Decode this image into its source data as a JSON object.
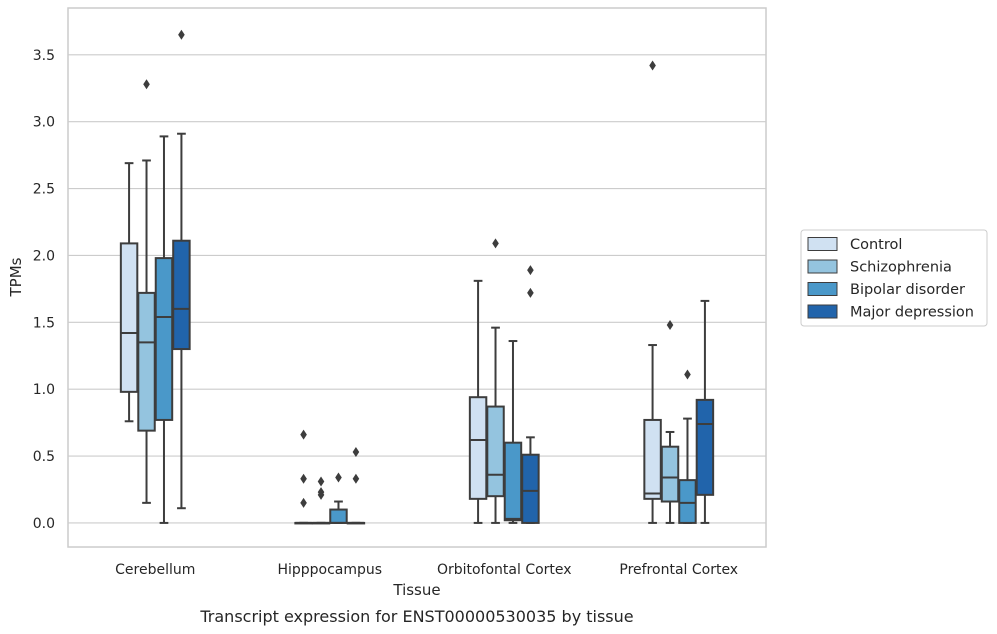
{
  "chart_data": {
    "type": "boxplot",
    "xlabel": "Tissue",
    "ylabel": "TPMs",
    "caption": "Transcript expression for ENST00000530035 by tissue",
    "ylim": [
      -0.18,
      3.85
    ],
    "yticks": [
      "0.0",
      "0.5",
      "1.0",
      "1.5",
      "2.0",
      "2.5",
      "3.0",
      "3.5"
    ],
    "grid": true,
    "legend_position": "right",
    "categories": [
      "Cerebellum",
      "Hipppocampus",
      "Orbitofontal Cortex",
      "Prefrontal Cortex"
    ],
    "series": [
      {
        "name": "Control",
        "color": "#d0e1f2",
        "boxes": [
          {
            "whislo": 0.76,
            "q1": 0.98,
            "med": 1.42,
            "q3": 2.09,
            "whishi": 2.69,
            "fliers": []
          },
          {
            "whislo": 0.0,
            "q1": 0.0,
            "med": 0.0,
            "q3": 0.0,
            "whishi": 0.0,
            "fliers": [
              0.66,
              0.33,
              0.15
            ]
          },
          {
            "whislo": 0.0,
            "q1": 0.18,
            "med": 0.62,
            "q3": 0.94,
            "whishi": 1.81,
            "fliers": []
          },
          {
            "whislo": 0.0,
            "q1": 0.18,
            "med": 0.22,
            "q3": 0.77,
            "whishi": 1.33,
            "fliers": [
              3.42
            ]
          }
        ]
      },
      {
        "name": "Schizophrenia",
        "color": "#94c4df",
        "boxes": [
          {
            "whislo": 0.15,
            "q1": 0.69,
            "med": 1.35,
            "q3": 1.72,
            "whishi": 2.71,
            "fliers": [
              3.28
            ]
          },
          {
            "whislo": 0.0,
            "q1": 0.0,
            "med": 0.0,
            "q3": 0.0,
            "whishi": 0.0,
            "fliers": [
              0.31,
              0.23,
              0.21
            ]
          },
          {
            "whislo": 0.0,
            "q1": 0.2,
            "med": 0.36,
            "q3": 0.87,
            "whishi": 1.46,
            "fliers": [
              2.09
            ]
          },
          {
            "whislo": 0.0,
            "q1": 0.16,
            "med": 0.34,
            "q3": 0.57,
            "whishi": 0.68,
            "fliers": [
              1.48
            ]
          }
        ]
      },
      {
        "name": "Bipolar disorder",
        "color": "#4a98c9",
        "boxes": [
          {
            "whislo": 0.0,
            "q1": 0.77,
            "med": 1.54,
            "q3": 1.98,
            "whishi": 2.89,
            "fliers": []
          },
          {
            "whislo": 0.0,
            "q1": 0.0,
            "med": 0.0,
            "q3": 0.1,
            "whishi": 0.16,
            "fliers": [
              0.34
            ]
          },
          {
            "whislo": 0.0,
            "q1": 0.02,
            "med": 0.03,
            "q3": 0.6,
            "whishi": 1.36,
            "fliers": []
          },
          {
            "whislo": 0.0,
            "q1": 0.0,
            "med": 0.15,
            "q3": 0.32,
            "whishi": 0.78,
            "fliers": [
              1.11
            ]
          }
        ]
      },
      {
        "name": "Major depression",
        "color": "#2164ab",
        "boxes": [
          {
            "whislo": 0.11,
            "q1": 1.3,
            "med": 1.6,
            "q3": 2.11,
            "whishi": 2.91,
            "fliers": [
              3.65
            ]
          },
          {
            "whislo": 0.0,
            "q1": 0.0,
            "med": 0.0,
            "q3": 0.0,
            "whishi": 0.0,
            "fliers": [
              0.53,
              0.33
            ]
          },
          {
            "whislo": 0.0,
            "q1": 0.0,
            "med": 0.24,
            "q3": 0.51,
            "whishi": 0.64,
            "fliers": [
              1.89,
              1.72
            ]
          },
          {
            "whislo": 0.0,
            "q1": 0.21,
            "med": 0.74,
            "q3": 0.92,
            "whishi": 1.66,
            "fliers": []
          }
        ]
      }
    ]
  }
}
